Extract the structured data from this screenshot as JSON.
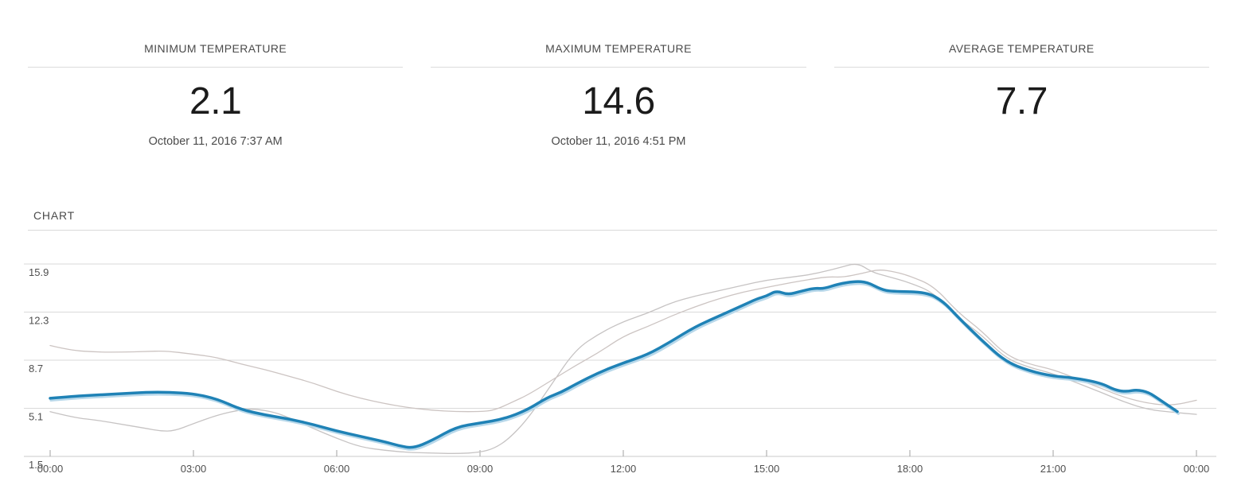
{
  "stats": {
    "cards": [
      {
        "title": "MINIMUM TEMPERATURE",
        "value": "2.1",
        "date": "October 11, 2016 7:37 AM"
      },
      {
        "title": "MAXIMUM TEMPERATURE",
        "value": "14.6",
        "date": "October 11, 2016 4:51 PM"
      },
      {
        "title": "AVERAGE TEMPERATURE",
        "value": "7.7",
        "date": ""
      }
    ]
  },
  "chart_section": {
    "title": "CHART"
  },
  "chart_data": {
    "type": "line",
    "title": "CHART",
    "xlabel": "",
    "ylabel": "",
    "xlim": [
      0,
      24
    ],
    "ylim": [
      1.5,
      15.9
    ],
    "grid": true,
    "legend": "none",
    "x_ticks": [
      {
        "t": 0,
        "label": "00:00"
      },
      {
        "t": 3,
        "label": "03:00"
      },
      {
        "t": 6,
        "label": "06:00"
      },
      {
        "t": 9,
        "label": "09:00"
      },
      {
        "t": 12,
        "label": "12:00"
      },
      {
        "t": 15,
        "label": "15:00"
      },
      {
        "t": 18,
        "label": "18:00"
      },
      {
        "t": 21,
        "label": "21:00"
      },
      {
        "t": 24,
        "label": "00:00"
      }
    ],
    "y_ticks": [
      {
        "v": 15.9,
        "label": "15.9"
      },
      {
        "v": 12.3,
        "label": "12.3"
      },
      {
        "v": 8.7,
        "label": "8.7"
      },
      {
        "v": 5.1,
        "label": "5.1"
      },
      {
        "v": 1.5,
        "label": "1.5"
      }
    ],
    "colors": {
      "main": "#1f82b6",
      "main_shadow": "#b8d8ea",
      "secondary1": "#ccc4c2",
      "secondary2": "#c6c3c3",
      "gridline": "#dadada",
      "axis_line": "#c8c8c8",
      "tick": "#a0a0a0",
      "axis_text": "#4f4f4f"
    },
    "series": [
      {
        "name": "temperature-reference-2",
        "color_key": "secondary2",
        "width": 1.3,
        "shadow": false,
        "points": [
          [
            0,
            4.85
          ],
          [
            0.5,
            4.4
          ],
          [
            1,
            4.2
          ],
          [
            1.5,
            3.9
          ],
          [
            2,
            3.6
          ],
          [
            2.3,
            3.4
          ],
          [
            2.6,
            3.4
          ],
          [
            3,
            3.95
          ],
          [
            3.5,
            4.6
          ],
          [
            4,
            5.0
          ],
          [
            4.3,
            5.05
          ],
          [
            4.7,
            4.8
          ],
          [
            5,
            4.4
          ],
          [
            5.5,
            3.6
          ],
          [
            6,
            2.85
          ],
          [
            6.5,
            2.2
          ],
          [
            7,
            1.95
          ],
          [
            7.5,
            1.8
          ],
          [
            8,
            1.75
          ],
          [
            8.5,
            1.7
          ],
          [
            9,
            1.8
          ],
          [
            9.3,
            2.1
          ],
          [
            9.6,
            2.8
          ],
          [
            10,
            4.3
          ],
          [
            10.5,
            6.9
          ],
          [
            11,
            9.5
          ],
          [
            11.5,
            10.7
          ],
          [
            12,
            11.6
          ],
          [
            12.5,
            12.2
          ],
          [
            13,
            13.0
          ],
          [
            13.5,
            13.5
          ],
          [
            14,
            13.9
          ],
          [
            14.5,
            14.3
          ],
          [
            15,
            14.7
          ],
          [
            15.5,
            14.9
          ],
          [
            16,
            15.15
          ],
          [
            16.5,
            15.6
          ],
          [
            16.9,
            16.0
          ],
          [
            17.2,
            15.3
          ],
          [
            17.5,
            15.0
          ],
          [
            18,
            14.5
          ],
          [
            18.5,
            13.75
          ],
          [
            19,
            11.9
          ],
          [
            19.5,
            10.6
          ],
          [
            20,
            8.85
          ],
          [
            20.5,
            8.15
          ],
          [
            21,
            7.7
          ],
          [
            21.5,
            7.0
          ],
          [
            22,
            6.3
          ],
          [
            22.5,
            5.55
          ],
          [
            23,
            5.0
          ],
          [
            23.5,
            4.8
          ],
          [
            24,
            4.65
          ]
        ]
      },
      {
        "name": "temperature-reference-1",
        "color_key": "secondary1",
        "width": 1.3,
        "shadow": false,
        "points": [
          [
            0,
            9.8
          ],
          [
            0.4,
            9.45
          ],
          [
            1,
            9.3
          ],
          [
            1.5,
            9.3
          ],
          [
            2,
            9.35
          ],
          [
            2.4,
            9.4
          ],
          [
            3,
            9.15
          ],
          [
            3.5,
            8.9
          ],
          [
            4,
            8.4
          ],
          [
            4.5,
            8.0
          ],
          [
            5,
            7.5
          ],
          [
            5.5,
            7.0
          ],
          [
            6,
            6.35
          ],
          [
            6.5,
            5.85
          ],
          [
            7,
            5.45
          ],
          [
            7.5,
            5.15
          ],
          [
            8,
            4.95
          ],
          [
            8.5,
            4.85
          ],
          [
            9,
            4.85
          ],
          [
            9.3,
            4.95
          ],
          [
            9.7,
            5.6
          ],
          [
            10,
            6.1
          ],
          [
            10.5,
            7.2
          ],
          [
            11,
            8.3
          ],
          [
            11.5,
            9.3
          ],
          [
            12,
            10.5
          ],
          [
            12.5,
            11.2
          ],
          [
            13,
            12.0
          ],
          [
            13.5,
            12.7
          ],
          [
            14,
            13.3
          ],
          [
            14.5,
            13.8
          ],
          [
            15,
            14.15
          ],
          [
            15.5,
            14.5
          ],
          [
            16,
            14.8
          ],
          [
            16.3,
            14.95
          ],
          [
            16.6,
            14.9
          ],
          [
            17,
            15.2
          ],
          [
            17.35,
            15.5
          ],
          [
            17.7,
            15.3
          ],
          [
            18,
            15.0
          ],
          [
            18.5,
            14.25
          ],
          [
            19,
            12.3
          ],
          [
            19.5,
            10.9
          ],
          [
            20,
            9.1
          ],
          [
            20.5,
            8.4
          ],
          [
            21,
            8.0
          ],
          [
            21.5,
            7.3
          ],
          [
            22,
            6.6
          ],
          [
            22.5,
            5.9
          ],
          [
            23,
            5.45
          ],
          [
            23.5,
            5.3
          ],
          [
            24,
            5.7
          ]
        ]
      },
      {
        "name": "temperature-main",
        "color_key": "main",
        "width": 3.5,
        "shadow": true,
        "points": [
          [
            0,
            5.85
          ],
          [
            0.5,
            6.0
          ],
          [
            1,
            6.1
          ],
          [
            1.5,
            6.2
          ],
          [
            2,
            6.3
          ],
          [
            2.5,
            6.3
          ],
          [
            3,
            6.2
          ],
          [
            3.5,
            5.8
          ],
          [
            4,
            5.0
          ],
          [
            4.5,
            4.6
          ],
          [
            5,
            4.3
          ],
          [
            5.5,
            3.9
          ],
          [
            6,
            3.4
          ],
          [
            6.5,
            3.0
          ],
          [
            7,
            2.6
          ],
          [
            7.3,
            2.3
          ],
          [
            7.6,
            2.1
          ],
          [
            8,
            2.7
          ],
          [
            8.5,
            3.7
          ],
          [
            9,
            4.0
          ],
          [
            9.5,
            4.3
          ],
          [
            10,
            5.0
          ],
          [
            10.4,
            5.9
          ],
          [
            10.7,
            6.3
          ],
          [
            11,
            6.9
          ],
          [
            11.5,
            7.8
          ],
          [
            12,
            8.5
          ],
          [
            12.5,
            9.1
          ],
          [
            13,
            10.1
          ],
          [
            13.5,
            11.2
          ],
          [
            14,
            12.0
          ],
          [
            14.5,
            12.8
          ],
          [
            14.8,
            13.3
          ],
          [
            15,
            13.5
          ],
          [
            15.2,
            13.9
          ],
          [
            15.45,
            13.6
          ],
          [
            15.7,
            13.85
          ],
          [
            16,
            14.1
          ],
          [
            16.2,
            14.05
          ],
          [
            16.5,
            14.4
          ],
          [
            16.85,
            14.6
          ],
          [
            17.1,
            14.55
          ],
          [
            17.4,
            14.0
          ],
          [
            17.6,
            13.85
          ],
          [
            18.35,
            13.8
          ],
          [
            18.7,
            13.1
          ],
          [
            19,
            11.95
          ],
          [
            19.5,
            10.2
          ],
          [
            20,
            8.6
          ],
          [
            20.5,
            7.9
          ],
          [
            21,
            7.5
          ],
          [
            21.4,
            7.4
          ],
          [
            22,
            7.0
          ],
          [
            22.3,
            6.45
          ],
          [
            22.55,
            6.35
          ],
          [
            22.75,
            6.5
          ],
          [
            23,
            6.3
          ],
          [
            23.25,
            5.7
          ],
          [
            23.6,
            4.85
          ]
        ]
      }
    ]
  }
}
